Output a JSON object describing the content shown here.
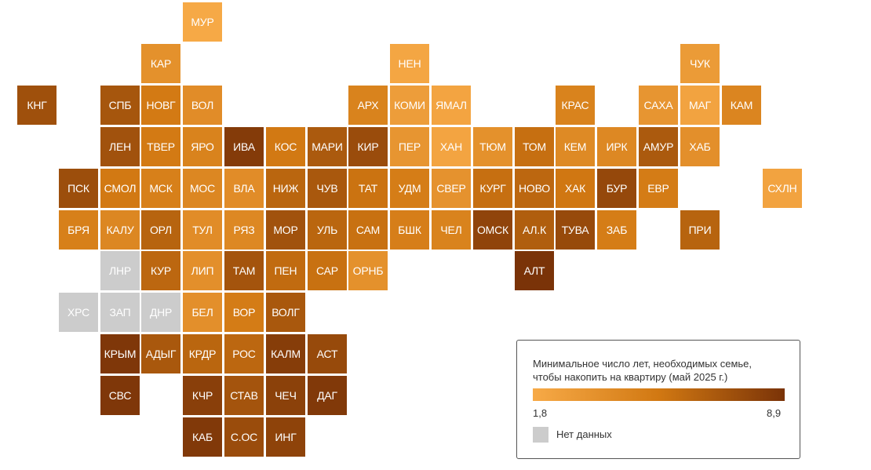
{
  "scale": {
    "min_label": "1,8",
    "max_label": "8,9",
    "min_value": 1.8,
    "max_value": 8.9,
    "color_min": "#f7aa47",
    "color_mid": "#d17812",
    "color_max": "#7a3308",
    "no_data_color": "#cccccc"
  },
  "legend": {
    "title": "Минимальное число лет, необходимых семье,\nчтобы накопить на квартиру (май 2025 г.)",
    "no_data_label": "Нет данных"
  },
  "regions": [
    {
      "label": "МУР",
      "value": 1.9
    },
    {
      "label": "КАР",
      "value": 3.6
    },
    {
      "label": "НЕН",
      "value": 2.1
    },
    {
      "label": "ЧУК",
      "value": 2.9
    },
    {
      "label": "КНГ",
      "value": 7.4
    },
    {
      "label": "СПБ",
      "value": 7.1
    },
    {
      "label": "НОВГ",
      "value": 5.2
    },
    {
      "label": "ВОЛ",
      "value": 3.9
    },
    {
      "label": "АРХ",
      "value": 4.6
    },
    {
      "label": "КОМИ",
      "value": 2.7
    },
    {
      "label": "ЯМАЛ",
      "value": 2.2
    },
    {
      "label": "КРАС",
      "value": 4.6
    },
    {
      "label": "САХА",
      "value": 3.3
    },
    {
      "label": "МАГ",
      "value": 2.3
    },
    {
      "label": "КАМ",
      "value": 4.4
    },
    {
      "label": "ЛЕН",
      "value": 7.3
    },
    {
      "label": "ТВЕР",
      "value": 5.2
    },
    {
      "label": "ЯРО",
      "value": 4.6
    },
    {
      "label": "ИВА",
      "value": 8.5
    },
    {
      "label": "КОС",
      "value": 5.3
    },
    {
      "label": "МАРИ",
      "value": 6.9
    },
    {
      "label": "КИР",
      "value": 7.6
    },
    {
      "label": "ПЕР",
      "value": 3.3
    },
    {
      "label": "ХАН",
      "value": 2.2
    },
    {
      "label": "ТЮМ",
      "value": 3.6
    },
    {
      "label": "ТОМ",
      "value": 5.8
    },
    {
      "label": "КЕМ",
      "value": 4.1
    },
    {
      "label": "ИРК",
      "value": 4.2
    },
    {
      "label": "АМУР",
      "value": 6.9
    },
    {
      "label": "ХАБ",
      "value": 3.7
    },
    {
      "label": "ПСК",
      "value": 7.5
    },
    {
      "label": "СМОЛ",
      "value": 5.3
    },
    {
      "label": "МСК",
      "value": 4.8
    },
    {
      "label": "МОС",
      "value": 4.3
    },
    {
      "label": "ВЛА",
      "value": 3.9
    },
    {
      "label": "НИЖ",
      "value": 6.3
    },
    {
      "label": "ЧУВ",
      "value": 7.0
    },
    {
      "label": "ТАТ",
      "value": 5.6
    },
    {
      "label": "УДМ",
      "value": 5.0
    },
    {
      "label": "СВЕР",
      "value": 3.5
    },
    {
      "label": "КУРГ",
      "value": 5.8
    },
    {
      "label": "НОВО",
      "value": 6.2
    },
    {
      "label": "ХАК",
      "value": 5.4
    },
    {
      "label": "БУР",
      "value": 7.8
    },
    {
      "label": "ЕВР",
      "value": 5.1
    },
    {
      "label": "СХЛН",
      "value": 2.3
    },
    {
      "label": "БРЯ",
      "value": 4.8
    },
    {
      "label": "КАЛУ",
      "value": 4.3
    },
    {
      "label": "ОРЛ",
      "value": 6.4
    },
    {
      "label": "ТУЛ",
      "value": 3.9
    },
    {
      "label": "РЯЗ",
      "value": 4.2
    },
    {
      "label": "МОР",
      "value": 7.3
    },
    {
      "label": "УЛЬ",
      "value": 6.3
    },
    {
      "label": "САМ",
      "value": 5.7
    },
    {
      "label": "БШК",
      "value": 4.9
    },
    {
      "label": "ЧЕЛ",
      "value": 4.6
    },
    {
      "label": "ОМСК",
      "value": 8.0
    },
    {
      "label": "АЛ.К",
      "value": 6.7
    },
    {
      "label": "ТУВА",
      "value": 7.7
    },
    {
      "label": "ЗАБ",
      "value": 5.0
    },
    {
      "label": "ПРИ",
      "value": 6.4
    },
    {
      "label": "ЛНР",
      "value": null
    },
    {
      "label": "КУР",
      "value": 6.2
    },
    {
      "label": "ЛИП",
      "value": 3.7
    },
    {
      "label": "ТАМ",
      "value": 7.2
    },
    {
      "label": "ПЕН",
      "value": 6.0
    },
    {
      "label": "САР",
      "value": 5.7
    },
    {
      "label": "ОРНБ",
      "value": 3.6
    },
    {
      "label": "АЛТ",
      "value": 8.9
    },
    {
      "label": "ХРС",
      "value": null
    },
    {
      "label": "ЗАП",
      "value": null
    },
    {
      "label": "ДНР",
      "value": null
    },
    {
      "label": "БЕЛ",
      "value": 3.7
    },
    {
      "label": "ВОР",
      "value": 5.1
    },
    {
      "label": "ВОЛГ",
      "value": 7.0
    },
    {
      "label": "КРЫМ",
      "value": 8.7
    },
    {
      "label": "АДЫГ",
      "value": 7.0
    },
    {
      "label": "КРДР",
      "value": 6.3
    },
    {
      "label": "РОС",
      "value": 6.2
    },
    {
      "label": "КАЛМ",
      "value": 8.4
    },
    {
      "label": "АСТ",
      "value": 7.7
    },
    {
      "label": "СВС",
      "value": 8.7
    },
    {
      "label": "КЧР",
      "value": 8.3
    },
    {
      "label": "СТАВ",
      "value": 7.2
    },
    {
      "label": "ЧЕЧ",
      "value": 8.2
    },
    {
      "label": "ДАГ",
      "value": 8.6
    },
    {
      "label": "КАБ",
      "value": 8.6
    },
    {
      "label": "С.ОС",
      "value": 7.6
    },
    {
      "label": "ИНГ",
      "value": 8.1
    }
  ]
}
